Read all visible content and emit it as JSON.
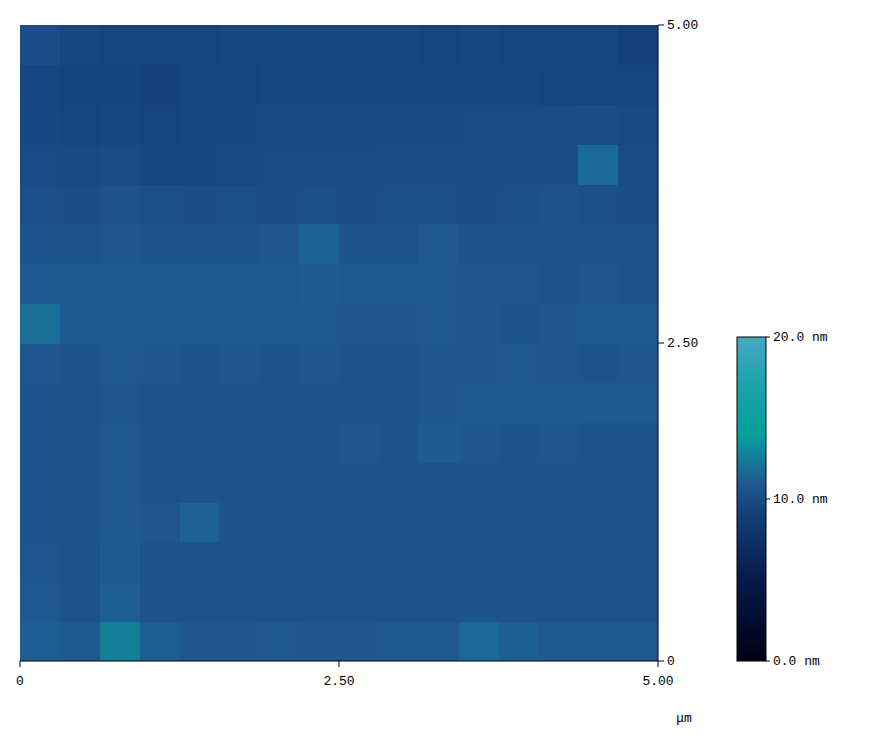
{
  "chart_data": {
    "type": "heatmap",
    "x_label": "μm",
    "xlim": [
      0,
      5
    ],
    "ylim": [
      0,
      5
    ],
    "xticks": [
      0,
      {
        "value": 2.5,
        "label": "2.50"
      },
      {
        "value": 5,
        "label": "5.00"
      }
    ],
    "yticks": [
      0,
      {
        "value": 2.5,
        "label": "2.50"
      },
      {
        "value": 5,
        "label": "5.00"
      }
    ],
    "tick_labels": true,
    "grid": false,
    "values": [
      [
        11.2,
        11.0,
        12.6,
        11.2,
        10.8,
        10.8,
        10.9,
        10.8,
        10.8,
        10.9,
        10.9,
        11.8,
        11.3,
        11.0,
        11.0,
        11.0
      ],
      [
        10.9,
        10.6,
        11.2,
        10.6,
        10.5,
        10.5,
        10.6,
        10.5,
        10.6,
        10.5,
        10.6,
        10.6,
        10.7,
        10.5,
        10.6,
        10.6
      ],
      [
        10.8,
        10.6,
        11.1,
        10.6,
        10.7,
        10.6,
        10.5,
        10.6,
        10.5,
        10.6,
        10.7,
        10.6,
        10.6,
        10.7,
        10.6,
        10.5
      ],
      [
        10.7,
        10.7,
        11.0,
        10.8,
        11.4,
        10.7,
        10.6,
        10.7,
        10.6,
        10.7,
        10.6,
        10.7,
        10.6,
        10.6,
        10.7,
        10.6
      ],
      [
        10.6,
        10.5,
        10.9,
        10.6,
        10.7,
        10.6,
        10.6,
        10.6,
        10.5,
        10.6,
        10.6,
        10.5,
        10.6,
        10.5,
        10.6,
        10.5
      ],
      [
        10.7,
        10.6,
        10.9,
        10.7,
        10.6,
        10.6,
        10.6,
        10.7,
        10.8,
        10.7,
        11.1,
        10.8,
        10.7,
        10.8,
        10.7,
        10.6
      ],
      [
        10.6,
        10.5,
        10.8,
        10.6,
        10.6,
        10.5,
        10.6,
        10.6,
        10.6,
        10.7,
        10.8,
        10.9,
        10.9,
        11.0,
        11.0,
        10.9
      ],
      [
        10.8,
        10.7,
        10.9,
        10.8,
        10.7,
        10.8,
        10.7,
        10.8,
        10.7,
        10.6,
        10.8,
        10.8,
        10.9,
        10.8,
        10.7,
        10.8
      ],
      [
        11.9,
        11.0,
        11.1,
        11.0,
        10.9,
        10.9,
        10.9,
        10.9,
        10.8,
        10.8,
        10.9,
        10.8,
        10.7,
        10.8,
        10.9,
        10.9
      ],
      [
        11.0,
        10.9,
        11.0,
        11.0,
        11.0,
        11.0,
        10.9,
        11.1,
        10.9,
        10.9,
        10.9,
        10.8,
        10.8,
        10.7,
        10.8,
        10.7
      ],
      [
        10.6,
        10.6,
        10.8,
        10.7,
        10.6,
        10.7,
        10.8,
        11.5,
        10.7,
        10.6,
        11.0,
        10.6,
        10.6,
        10.6,
        10.6,
        10.5
      ],
      [
        10.3,
        10.2,
        10.4,
        10.3,
        10.2,
        10.3,
        10.2,
        10.3,
        10.2,
        10.3,
        10.3,
        10.2,
        10.3,
        10.4,
        10.3,
        10.2
      ],
      [
        9.9,
        9.8,
        10.0,
        9.7,
        9.7,
        9.8,
        9.9,
        9.9,
        9.9,
        10.0,
        10.0,
        10.0,
        10.1,
        10.2,
        11.8,
        10.0
      ],
      [
        9.7,
        9.5,
        9.6,
        9.5,
        9.6,
        9.7,
        9.8,
        9.8,
        9.8,
        9.8,
        9.8,
        9.9,
        9.9,
        9.9,
        10.0,
        9.8
      ],
      [
        9.6,
        9.3,
        9.3,
        9.2,
        9.4,
        9.5,
        9.6,
        9.6,
        9.7,
        9.7,
        9.6,
        9.6,
        9.6,
        9.5,
        9.5,
        9.4
      ],
      [
        10.2,
        9.6,
        9.5,
        9.4,
        9.5,
        9.6,
        9.7,
        9.6,
        9.6,
        9.6,
        9.5,
        9.6,
        9.5,
        9.4,
        9.5,
        9.2
      ]
    ],
    "zlim": [
      0,
      20
    ],
    "zticks": [
      {
        "value": 0,
        "label": "0.0 nm"
      },
      {
        "value": 10,
        "label": "10.0 nm"
      },
      {
        "value": 20,
        "label": "20.0 nm"
      }
    ]
  }
}
